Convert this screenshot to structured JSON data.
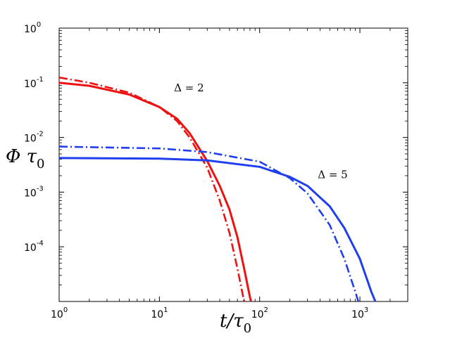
{
  "chart_data": {
    "type": "line",
    "xscale": "log",
    "yscale": "log",
    "xlim": [
      1,
      3000
    ],
    "ylim": [
      1e-05,
      1
    ],
    "xlabel": "t/τ0",
    "ylabel": "Φ τ0",
    "grid": false,
    "legend": "none",
    "x_ticks": [
      {
        "value": 1,
        "base": "10",
        "exp": "0"
      },
      {
        "value": 10,
        "base": "10",
        "exp": "1"
      },
      {
        "value": 100,
        "base": "10",
        "exp": "2"
      },
      {
        "value": 1000,
        "base": "10",
        "exp": "3"
      }
    ],
    "y_ticks": [
      {
        "value": 1,
        "base": "10",
        "exp": "0"
      },
      {
        "value": 0.1,
        "base": "10",
        "exp": "-1"
      },
      {
        "value": 0.01,
        "base": "10",
        "exp": "-2"
      },
      {
        "value": 0.001,
        "base": "10",
        "exp": "-3"
      },
      {
        "value": 0.0001,
        "base": "10",
        "exp": "-4"
      }
    ],
    "annotations": [
      {
        "text": "Δ = 2",
        "x": 14,
        "y": 0.07
      },
      {
        "text": "Δ = 5",
        "x": 380,
        "y": 0.0018
      }
    ],
    "series": [
      {
        "style": "solid",
        "color": "#ee1111",
        "x": [
          1,
          2,
          5,
          10,
          15,
          20,
          30,
          40,
          50,
          60,
          70,
          80,
          85
        ],
        "y": [
          0.1,
          0.088,
          0.061,
          0.036,
          0.022,
          0.012,
          0.0037,
          0.0013,
          0.00048,
          0.00015,
          4e-05,
          1.2e-05,
          8e-06
        ]
      },
      {
        "style": "dashdot",
        "color": "#ee1111",
        "x": [
          1,
          2,
          5,
          10,
          15,
          20,
          30,
          40,
          50,
          60,
          70
        ],
        "y": [
          0.125,
          0.1,
          0.066,
          0.036,
          0.02,
          0.01,
          0.0028,
          0.0007,
          0.00018,
          4e-05,
          1e-05
        ]
      },
      {
        "style": "solid",
        "color": "#1f3fee",
        "x": [
          1,
          10,
          30,
          100,
          200,
          300,
          500,
          700,
          1000,
          1300,
          1500
        ],
        "y": [
          0.0042,
          0.0041,
          0.0038,
          0.0029,
          0.0019,
          0.0013,
          0.00055,
          0.00022,
          6e-05,
          1.5e-05,
          8e-06
        ]
      },
      {
        "style": "dashdot",
        "color": "#1f3fee",
        "x": [
          1,
          10,
          30,
          100,
          200,
          300,
          500,
          700,
          900,
          1000
        ],
        "y": [
          0.0068,
          0.0063,
          0.0054,
          0.0036,
          0.0018,
          0.00095,
          0.00025,
          6e-05,
          1.5e-05,
          8e-06
        ]
      }
    ]
  }
}
